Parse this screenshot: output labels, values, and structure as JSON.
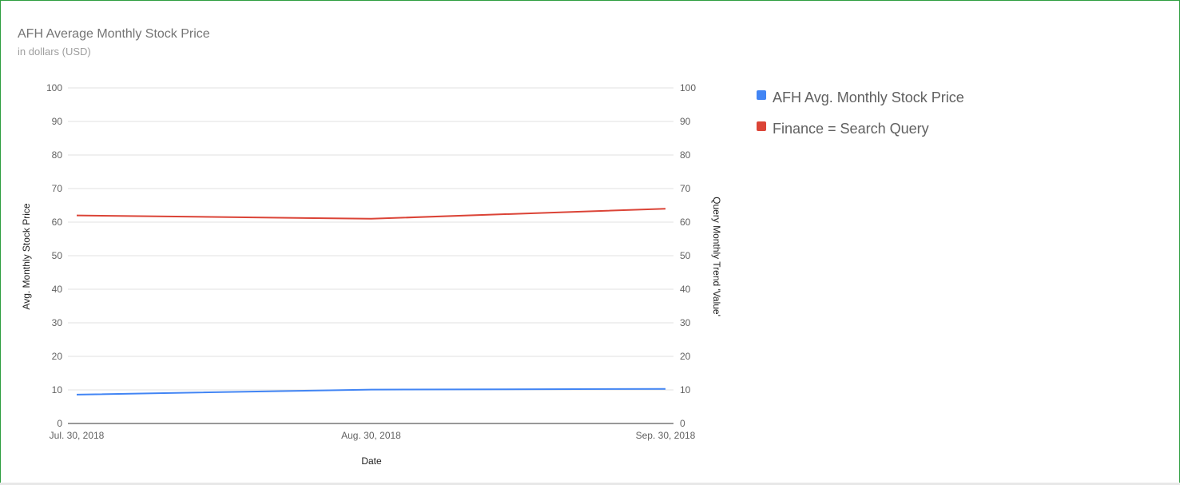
{
  "chart_data": {
    "type": "line",
    "title": "AFH Average Monthly Stock Price",
    "subtitle": "in dollars (USD)",
    "xlabel": "Date",
    "ylabel_left": "Avg. Monthly Stock Price",
    "ylabel_right": "Query Monthly Trend 'Value'",
    "categories": [
      "Jul. 30, 2018",
      "Aug. 30, 2018",
      "Sep. 30, 2018"
    ],
    "ylim": [
      0,
      100
    ],
    "yticks": [
      0,
      10,
      20,
      30,
      40,
      50,
      60,
      70,
      80,
      90,
      100
    ],
    "grid": true,
    "legend_position": "right",
    "series": [
      {
        "name": "AFH Avg. Monthly Stock Price",
        "color": "#4285f4",
        "axis": "left",
        "values": [
          8.6,
          10.1,
          10.3
        ]
      },
      {
        "name": "Finance = Search Query",
        "color": "#db4437",
        "axis": "right",
        "values": [
          62,
          61,
          64
        ]
      }
    ]
  }
}
